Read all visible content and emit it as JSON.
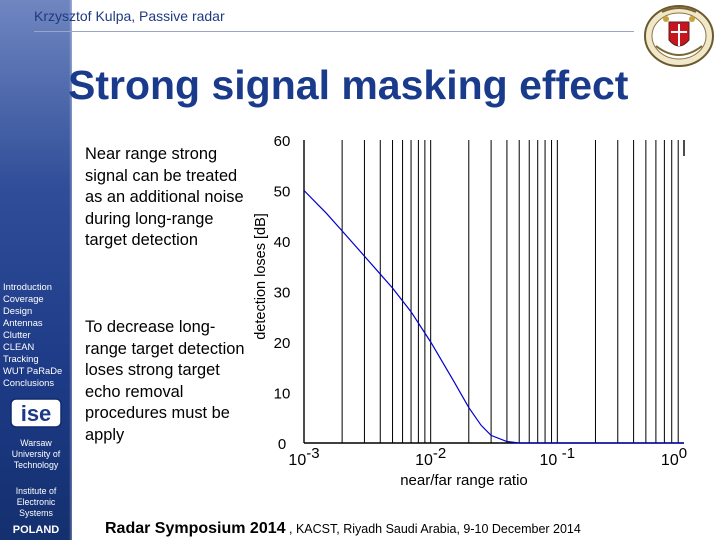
{
  "header": {
    "author_title": "Krzysztof Kulpa, Passive radar",
    "seal_icon": "university-seal-icon"
  },
  "slide": {
    "title": "Strong signal masking effect"
  },
  "sidebar": {
    "nav_items": [
      "Introduction",
      "Coverage",
      "Design",
      "Antennas",
      "Clutter",
      "CLEAN",
      "Tracking",
      "WUT PaRaDe",
      "Conclusions"
    ],
    "logo_icon": "ise-logo-icon",
    "logo_text": "ise",
    "university": [
      "Warsaw",
      "University of",
      "Technology"
    ],
    "institute": [
      "Institute of",
      "Electronic",
      "Systems"
    ],
    "country": "POLAND"
  },
  "body": {
    "para1": "Near range strong signal can be treated as an additional noise during long-range target detection",
    "para2": "To decrease long-range target detection loses strong target echo removal procedures must be  apply"
  },
  "footer": {
    "event": "Radar Symposium 2014",
    "sep": " , ",
    "location": "KACST, Riyadh  Saudi Arabia,  9-10 December 2014"
  },
  "chart_data": {
    "type": "line",
    "xlabel": "near/far range ratio",
    "ylabel": "detection loses [dB]",
    "xscale": "log",
    "xlim": [
      0.001,
      1
    ],
    "ylim": [
      0,
      60
    ],
    "xticks": [
      0.001,
      0.01,
      0.1,
      1
    ],
    "xtick_bases": [
      "10",
      "10",
      "10 ",
      "10"
    ],
    "xtick_exps": [
      "-3",
      "-2",
      "-1",
      "0"
    ],
    "yticks": [
      0,
      10,
      20,
      30,
      40,
      50,
      60
    ],
    "grid": true,
    "line_color": "#0000cc",
    "x": [
      0.001,
      0.0015,
      0.002,
      0.003,
      0.005,
      0.007,
      0.01,
      0.015,
      0.02,
      0.025,
      0.03,
      0.04,
      0.05,
      0.07,
      0.1,
      0.2,
      0.5,
      1
    ],
    "y": [
      50,
      45.5,
      42,
      37,
      30.7,
      26,
      20,
      12.5,
      7,
      3.5,
      1.5,
      0.3,
      0,
      0,
      0,
      0,
      0,
      0
    ]
  }
}
